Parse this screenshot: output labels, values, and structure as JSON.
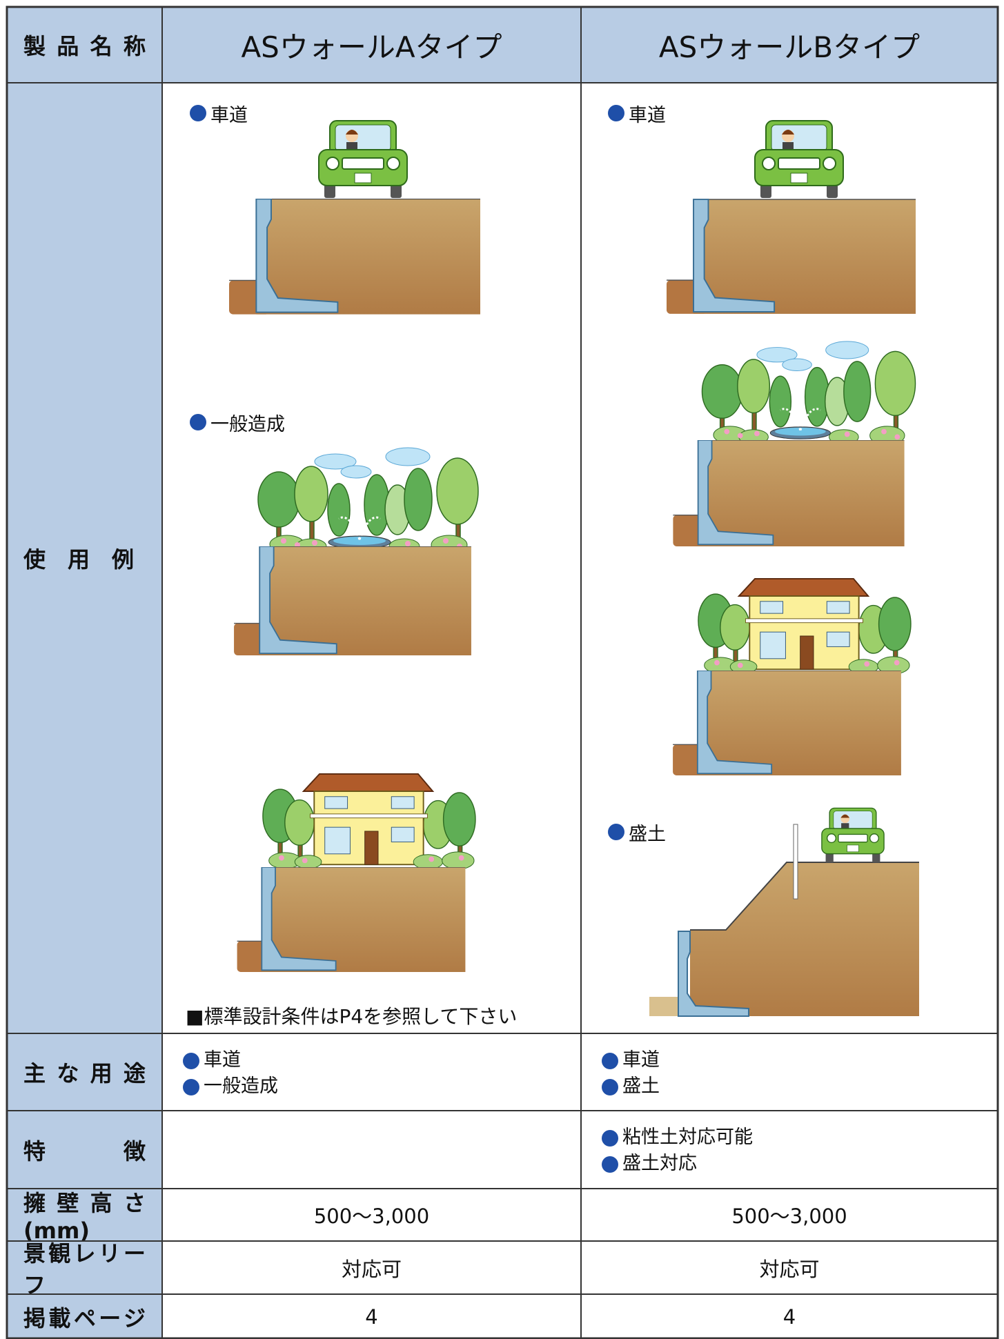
{
  "header": {
    "label": "製品名称",
    "columns": [
      "ASウォールAタイプ",
      "ASウォールBタイプ"
    ]
  },
  "examples": {
    "label": "使用例",
    "a": {
      "captions": [
        "車道",
        "一般造成"
      ],
      "note": "■標準設計条件はP4を参照して下さい"
    },
    "b": {
      "captions": [
        "車道",
        "盛土"
      ]
    }
  },
  "rows": [
    {
      "label": "主な用途",
      "a": [
        "車道",
        "一般造成"
      ],
      "b": [
        "車道",
        "盛土"
      ]
    },
    {
      "label": "特徴",
      "b": [
        "粘性土対応可能",
        "盛土対応"
      ]
    },
    {
      "label": "擁壁高さ(mm)",
      "a": "500〜3,000",
      "b": "500〜3,000"
    },
    {
      "label": "景観レリーフ",
      "a": "対応可",
      "b": "対応可"
    },
    {
      "label": "掲載ページ",
      "a": 4,
      "b": 4
    }
  ]
}
